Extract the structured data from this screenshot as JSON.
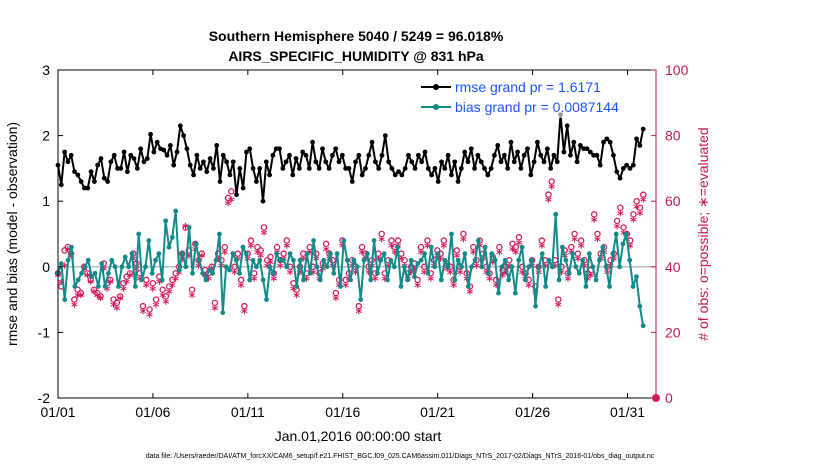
{
  "chart_data": {
    "type": "line",
    "title_line1": "Southern Hemisphere 5040 / 5249 = 96.018%",
    "title_line2": "AIRS_SPECIFIC_HUMIDITY @ 831 hPa",
    "ylabel_left": "rmse and bias (model - observation)",
    "ylabel_right": "# of obs: o=possible; ∗=evaluated",
    "xlabel": "Jan.01,2016 00:00:00 start",
    "footnote": "data file: /Users/raeder/DAI/ATM_forcXX/CAM6_setup/f.e21.FHIST_BGC.f09_025.CAM6assim.011/Diags_NTrS_2017-02/Diags_NTrS_2016-01/obs_diag_output.nc",
    "x_ticks": [
      0,
      5,
      10,
      15,
      20,
      25,
      30
    ],
    "x_tick_labels": [
      "01/01",
      "01/06",
      "01/11",
      "01/16",
      "01/21",
      "01/26",
      "01/31"
    ],
    "xlim": [
      0,
      31.5
    ],
    "ylim_left": [
      -2,
      3
    ],
    "y_ticks_left": [
      -2,
      -1,
      0,
      1,
      2,
      3
    ],
    "y_tick_labels_left": [
      "-2",
      "-1",
      "0",
      "1",
      "2",
      "3"
    ],
    "ylim_right": [
      0,
      100
    ],
    "y_ticks_right": [
      0,
      20,
      40,
      60,
      80,
      100
    ],
    "y_tick_labels_right": [
      "0",
      "20",
      "40",
      "60",
      "80",
      "100"
    ],
    "legend_position": "top-right",
    "colors": {
      "rmse": "#000000",
      "bias": "#138a8a",
      "obs": "#d81b60",
      "zero_line": "#bdbdbd",
      "legend_text": "#1a53ff",
      "right_axis": "#c2185b"
    },
    "series": [
      {
        "name": "rmse grand pr = 1.6171",
        "axis": "left",
        "values": [
          1.55,
          1.25,
          1.75,
          1.6,
          1.7,
          1.45,
          1.4,
          1.3,
          1.2,
          1.2,
          1.45,
          1.3,
          1.55,
          1.65,
          1.35,
          1.3,
          1.6,
          1.7,
          1.5,
          1.5,
          1.75,
          1.45,
          1.7,
          1.65,
          1.5,
          1.8,
          1.6,
          1.65,
          2.02,
          1.75,
          1.9,
          1.8,
          1.78,
          1.7,
          1.85,
          1.55,
          1.75,
          2.15,
          2.0,
          1.8,
          1.55,
          1.4,
          1.7,
          1.5,
          1.6,
          1.45,
          1.65,
          1.5,
          1.85,
          1.3,
          1.7,
          1.6,
          1.4,
          1.6,
          1.1,
          1.5,
          1.2,
          1.75,
          1.8,
          1.5,
          1.3,
          1.5,
          1.0,
          1.6,
          1.4,
          1.7,
          1.8,
          1.8,
          1.5,
          1.6,
          1.7,
          1.4,
          1.65,
          1.5,
          1.75,
          1.7,
          1.5,
          1.9,
          1.6,
          1.5,
          1.8,
          1.6,
          1.5,
          1.7,
          1.8,
          1.6,
          1.7,
          1.5,
          1.5,
          1.3,
          1.6,
          1.7,
          1.4,
          1.5,
          1.7,
          1.9,
          1.6,
          1.5,
          1.7,
          2.0,
          1.6,
          1.5,
          1.4,
          1.45,
          1.4,
          1.5,
          1.7,
          1.6,
          1.5,
          1.7,
          1.6,
          1.75,
          1.5,
          1.4,
          1.5,
          1.3,
          1.6,
          1.5,
          1.7,
          1.4,
          1.6,
          1.3,
          1.5,
          1.75,
          1.6,
          1.8,
          1.5,
          1.7,
          1.6,
          1.5,
          1.4,
          1.5,
          1.7,
          1.85,
          1.6,
          1.7,
          1.5,
          1.9,
          1.6,
          1.75,
          1.5,
          1.7,
          1.8,
          1.4,
          1.6,
          1.9,
          1.7,
          1.6,
          1.8,
          1.5,
          1.7,
          1.6,
          2.32,
          1.75,
          2.15,
          1.7,
          1.9,
          1.6,
          1.85,
          1.8,
          1.8,
          1.75,
          1.7,
          1.7,
          1.55,
          1.9,
          1.95,
          1.9,
          1.7,
          1.45,
          1.35,
          1.5,
          1.55,
          1.5,
          1.55,
          1.95,
          1.85,
          2.1
        ]
      },
      {
        "name": "bias grand pr = 0.0087144",
        "axis": "left",
        "values": [
          -0.1,
          0.05,
          -0.5,
          0.1,
          0.3,
          -0.3,
          -0.2,
          -0.1,
          0.0,
          0.1,
          -0.15,
          -0.1,
          -0.3,
          0.05,
          -0.3,
          -0.1,
          0.1,
          0.0,
          -0.3,
          0.0,
          0.15,
          0.0,
          0.2,
          -0.3,
          0.5,
          -0.2,
          0.0,
          0.4,
          -0.1,
          0.1,
          0.2,
          -0.2,
          0.7,
          0.3,
          0.45,
          0.85,
          -0.05,
          0.2,
          0.0,
          0.6,
          -0.1,
          0.35,
          0.1,
          -0.1,
          -0.2,
          -0.05,
          -0.1,
          0.1,
          0.5,
          -0.7,
          0.0,
          -0.05,
          0.2,
          0.1,
          -0.1,
          0.3,
          0.2,
          -0.2,
          0.1,
          0.0,
          0.1,
          -0.2,
          -0.5,
          0.0,
          -0.1,
          0.2,
          0.1,
          0.1,
          0.0,
          0.2,
          0.1,
          -0.3,
          0.1,
          -0.2,
          0.2,
          -0.1,
          0.4,
          0.0,
          -0.2,
          0.1,
          0.0,
          0.2,
          -0.1,
          0.2,
          -0.3,
          0.4,
          0.1,
          -0.2,
          0.1,
          0.0,
          -0.5,
          0.1,
          0.2,
          -0.2,
          0.4,
          -0.1,
          0.1,
          0.2,
          -0.2,
          0.1,
          0.0,
          0.3,
          -0.3,
          0.0,
          -0.2,
          0.1,
          -0.15,
          0.05,
          0.1,
          0.2,
          -0.1,
          0.3,
          0.0,
          0.2,
          -0.2,
          0.1,
          0.0,
          0.5,
          -0.2,
          0.1,
          0.0,
          0.2,
          -0.3,
          0.0,
          0.1,
          0.4,
          0.0,
          0.3,
          -0.1,
          0.2,
          0.1,
          -0.4,
          0.0,
          0.1,
          -0.2,
          0.0,
          -0.4,
          0.1,
          0.3,
          -0.2,
          0.0,
          0.1,
          -0.6,
          0.0,
          0.2,
          -0.3,
          0.1,
          0.0,
          0.8,
          -0.2,
          0.3,
          0.1,
          -0.1,
          0.2,
          0.0,
          -0.1,
          0.1,
          -0.3,
          0.2,
          0.0,
          -0.2,
          0.1,
          0.3,
          0.0,
          -0.3,
          0.2,
          0.5,
          0.0,
          0.35,
          0.5,
          0.1,
          -0.3,
          -0.15,
          -0.6,
          -0.9
        ]
      }
    ],
    "obs_possible": [
      38,
      34,
      45,
      46,
      44,
      30,
      33,
      32,
      40,
      38,
      36,
      33,
      32,
      31,
      41,
      35,
      36,
      30,
      29,
      31,
      35,
      37,
      38,
      44,
      41,
      38,
      28,
      36,
      27,
      35,
      30,
      37,
      33,
      31,
      34,
      36,
      38,
      40,
      44,
      52,
      45,
      33,
      47,
      42,
      44,
      39,
      38,
      40,
      29,
      44,
      42,
      46,
      61,
      63,
      40,
      44,
      36,
      28,
      44,
      48,
      38,
      46,
      45,
      52,
      42,
      43,
      38,
      46,
      42,
      44,
      48,
      40,
      35,
      33,
      40,
      44,
      38,
      46,
      40,
      44,
      38,
      41,
      47,
      44,
      42,
      32,
      36,
      48,
      36,
      38,
      42,
      40,
      28,
      46,
      44,
      40,
      42,
      38,
      44,
      50,
      38,
      42,
      48,
      46,
      48,
      44,
      42,
      38,
      40,
      41,
      36,
      46,
      40,
      48,
      38,
      42,
      45,
      44,
      48,
      41,
      40,
      36,
      45,
      40,
      50,
      38,
      34,
      46,
      42,
      48,
      44,
      40,
      38,
      43,
      36,
      46,
      39,
      40,
      42,
      47,
      46,
      49,
      40,
      38,
      36,
      42,
      34,
      40,
      48,
      42,
      62,
      66,
      42,
      30,
      40,
      45,
      38,
      46,
      50,
      44,
      48,
      42,
      38,
      39,
      56,
      50,
      44,
      46,
      40,
      42,
      44,
      54,
      58,
      52,
      50,
      48,
      56,
      60,
      58,
      62
    ],
    "obs_evaluated": [
      37,
      35,
      40,
      45,
      43,
      28,
      31,
      31,
      39,
      37,
      35,
      32,
      31,
      30,
      39,
      33,
      35,
      28,
      27,
      30,
      33,
      35,
      37,
      42,
      39,
      36,
      26,
      34,
      25,
      33,
      28,
      35,
      31,
      29,
      32,
      34,
      36,
      38,
      42,
      52,
      43,
      31,
      45,
      40,
      43,
      37,
      36,
      39,
      27,
      42,
      40,
      44,
      59,
      60,
      38,
      42,
      34,
      26,
      42,
      46,
      36,
      44,
      43,
      50,
      40,
      41,
      36,
      44,
      40,
      42,
      46,
      38,
      33,
      31,
      38,
      42,
      36,
      44,
      38,
      42,
      36,
      39,
      45,
      42,
      40,
      30,
      34,
      46,
      34,
      36,
      40,
      38,
      26,
      44,
      42,
      38,
      40,
      36,
      42,
      48,
      36,
      40,
      46,
      44,
      46,
      42,
      40,
      36,
      38,
      39,
      34,
      44,
      38,
      46,
      36,
      40,
      43,
      42,
      46,
      39,
      38,
      34,
      43,
      38,
      48,
      36,
      32,
      44,
      40,
      46,
      42,
      38,
      36,
      41,
      34,
      44,
      37,
      38,
      40,
      45,
      44,
      47,
      38,
      36,
      34,
      40,
      32,
      38,
      46,
      40,
      60,
      64,
      40,
      28,
      38,
      43,
      36,
      44,
      48,
      42,
      46,
      40,
      36,
      37,
      54,
      48,
      42,
      44,
      38,
      40,
      42,
      52,
      56,
      50,
      48,
      46,
      54,
      58,
      56,
      60
    ]
  }
}
